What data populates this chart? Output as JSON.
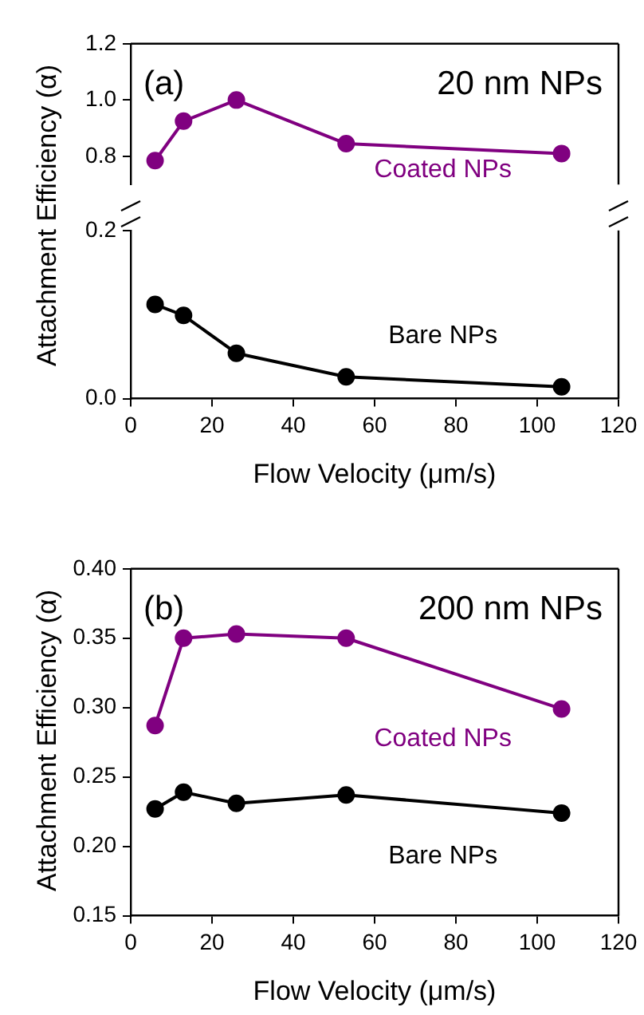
{
  "chart_data": [
    {
      "type": "line",
      "annotations": [
        "(a)",
        "20 nm NPs"
      ],
      "x": [
        6,
        13,
        26,
        53,
        106
      ],
      "xlim": [
        0,
        120
      ],
      "xticks": [
        0,
        20,
        40,
        60,
        80,
        100,
        120
      ],
      "ylim": [
        0.7,
        1.2
      ],
      "yticks": [
        0.8,
        {
          "value": 1.0,
          "label": "1.0"
        },
        1.2
      ],
      "tick_labels": "y",
      "grid": false,
      "legend": false,
      "marker": "circle",
      "line_style": "solid",
      "series": [
        {
          "name": "Coated NPs",
          "color": "#800080",
          "values": [
            0.785,
            0.925,
            1.0,
            0.845,
            0.81
          ]
        }
      ]
    },
    {
      "type": "line",
      "xlabel": "Flow Velocity (μm/s)",
      "ylabel": "Attachment Efficiency (α)",
      "x": [
        6,
        13,
        26,
        53,
        106
      ],
      "xlim": [
        0,
        120
      ],
      "xticks": [
        0,
        20,
        40,
        60,
        80,
        100,
        120
      ],
      "ylim": [
        0,
        0.2
      ],
      "yticks": [
        {
          "value": 0,
          "label": "0.0"
        },
        0.2
      ],
      "grid": false,
      "legend": false,
      "marker": "circle",
      "line_style": "solid",
      "series": [
        {
          "name": "Bare NPs",
          "color": "#000000",
          "values": [
            0.112,
            0.099,
            0.054,
            0.026,
            0.014
          ]
        }
      ]
    },
    {
      "type": "line",
      "annotations": [
        "(b)",
        "200 nm NPs"
      ],
      "xlabel": "Flow Velocity (μm/s)",
      "ylabel": "Attachment Efficiency (α)",
      "x": [
        6,
        13,
        26,
        53,
        106
      ],
      "xlim": [
        0,
        120
      ],
      "xticks": [
        0,
        20,
        40,
        60,
        80,
        100,
        120
      ],
      "ylim": [
        0.15,
        0.4
      ],
      "yticks": [
        0.15,
        {
          "value": 0.2,
          "label": "0.20"
        },
        0.25,
        {
          "value": 0.3,
          "label": "0.30"
        },
        0.35,
        {
          "value": 0.4,
          "label": "0.40"
        }
      ],
      "grid": false,
      "legend": false,
      "marker": "circle",
      "line_style": "solid",
      "series": [
        {
          "name": "Coated NPs",
          "color": "#800080",
          "values": [
            0.287,
            0.35,
            0.353,
            0.35,
            0.299
          ]
        },
        {
          "name": "Bare NPs",
          "color": "#000000",
          "values": [
            0.227,
            0.239,
            0.231,
            0.237,
            0.224
          ]
        }
      ]
    }
  ]
}
